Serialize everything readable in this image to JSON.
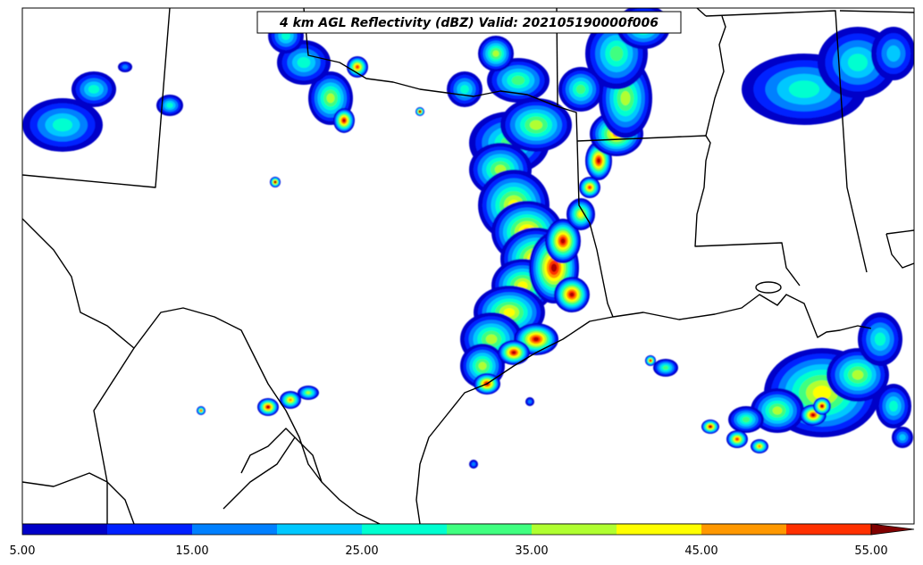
{
  "title": "4 km AGL Reflectivity (dBZ) Valid: 202105190000f006",
  "colorbar": {
    "levels": [
      5,
      10,
      15,
      20,
      25,
      30,
      35,
      40,
      45,
      50,
      55
    ],
    "colors": [
      "#0000c8",
      "#0020ff",
      "#0080ff",
      "#00c8ff",
      "#00ffd0",
      "#40ff80",
      "#b0ff30",
      "#ffff00",
      "#ff9800",
      "#ff3000",
      "#b00000"
    ],
    "extend_color": "#800000",
    "tick_labels": [
      "5.00",
      "15.00",
      "25.00",
      "35.00",
      "45.00",
      "55.00"
    ]
  }
}
